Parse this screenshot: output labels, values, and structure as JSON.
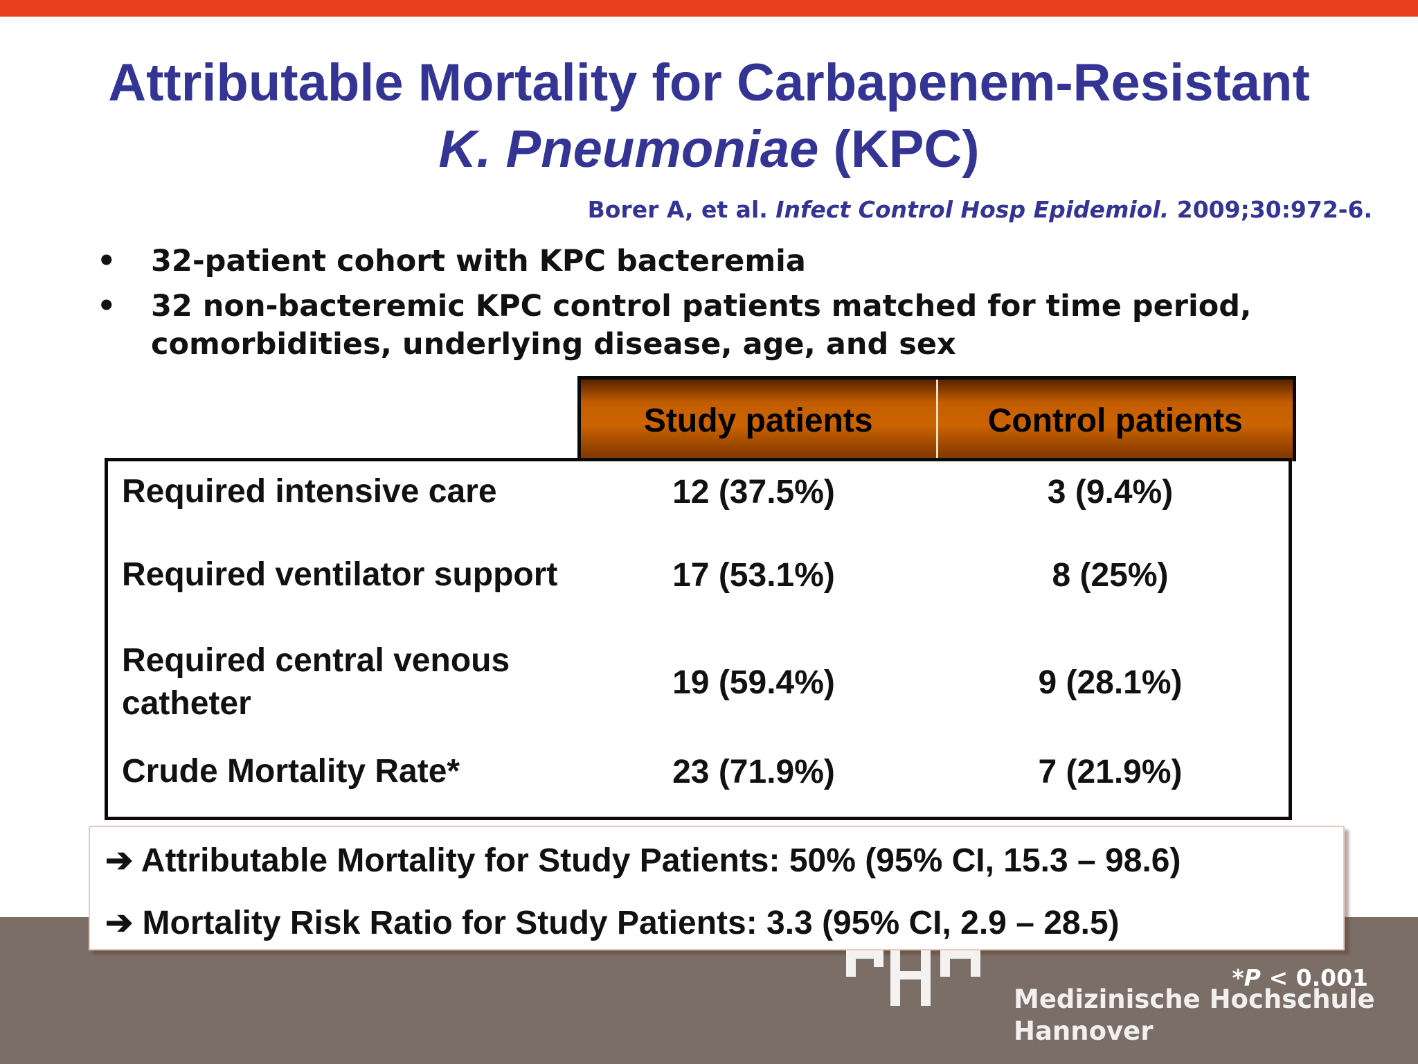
{
  "title": {
    "line1": "Attributable Mortality for Carbapenem-Resistant",
    "line2_italic": "K. Pneumoniae",
    "line2_rest": " (KPC)"
  },
  "citation": {
    "authors": "Borer A, et al. ",
    "journal": "Infect Control Hosp Epidemiol.",
    "ref": " 2009;30:972-6."
  },
  "bullets": [
    "32-patient cohort with KPC bacteremia",
    "32 non-bacteremic KPC control patients matched for time period, comorbidities, underlying disease, age, and sex"
  ],
  "bullet_symbol": "•",
  "table": {
    "headers": [
      "Study patients",
      "Control patients"
    ],
    "rows": [
      {
        "label": "Required intensive care",
        "study": "12 (37.5%)",
        "control": "3 (9.4%)"
      },
      {
        "label": "Required ventilator support",
        "study": "17 (53.1%)",
        "control": "8 (25%)"
      },
      {
        "label": "Required central venous catheter",
        "study": "19 (59.4%)",
        "control": "9 (28.1%)"
      },
      {
        "label": "Crude Mortality Rate*",
        "study": "23 (71.9%)",
        "control": "7 (21.9%)"
      }
    ]
  },
  "summary": [
    "➔ Attributable Mortality for Study Patients:  50% (95% CI, 15.3 – 98.6)",
    "➔ Mortality Risk Ratio for Study Patients:    3.3 (95% CI, 2.9 – 28.5)"
  ],
  "footnote": {
    "prefix": "*",
    "p": "P",
    "rest": " < 0.001"
  },
  "logo": {
    "line1": "Medizinische Hochschule",
    "line2": "Hannover"
  },
  "colors": {
    "title": "#343495",
    "top_bar": "#e8401c",
    "footer": "#7a6e66",
    "header_fill": "#c25d00"
  }
}
